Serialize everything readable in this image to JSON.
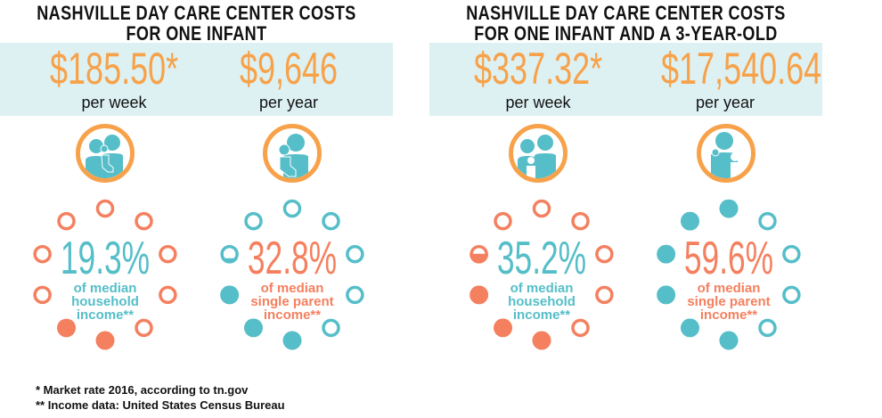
{
  "colors": {
    "teal": "#55bec8",
    "coral": "#f4805f",
    "orange": "#f7a24a",
    "band": "#ddf1f3"
  },
  "panels": [
    {
      "title": "NASHVILLE DAY CARE CENTER COSTS FOR ONE INFANT",
      "weekly": {
        "value": "$185.50*",
        "unit": "per week"
      },
      "yearly": {
        "value": "$9,646",
        "unit": "per year"
      },
      "icons": [
        "parent-holding-infant-icon",
        "parent-holding-infant-icon"
      ],
      "gauges": [
        {
          "percent": 19.3,
          "value_label": "19.3%",
          "sub": [
            "of median",
            "household",
            "income**"
          ],
          "text_color": "teal",
          "dot_color": "coral"
        },
        {
          "percent": 32.8,
          "value_label": "32.8%",
          "sub": [
            "of median",
            "single parent",
            "income**"
          ],
          "text_color": "coral",
          "dot_color": "teal"
        }
      ]
    },
    {
      "title": "NASHVILLE DAY CARE CENTER COSTS FOR ONE INFANT AND A 3-YEAR-OLD",
      "weekly": {
        "value": "$337.32*",
        "unit": "per week"
      },
      "yearly": {
        "value": "$17,540.64",
        "unit": "per year"
      },
      "icons": [
        "parents-with-infant-and-child-icon",
        "parent-with-infant-and-child-icon"
      ],
      "gauges": [
        {
          "percent": 35.2,
          "value_label": "35.2%",
          "sub": [
            "of median",
            "household",
            "income**"
          ],
          "text_color": "teal",
          "dot_color": "coral"
        },
        {
          "percent": 59.6,
          "value_label": "59.6%",
          "sub": [
            "of median",
            "single parent",
            "income**"
          ],
          "text_color": "coral",
          "dot_color": "teal"
        }
      ]
    }
  ],
  "footnotes": [
    "* Market rate 2016, according to tn.gov",
    "** Income data: United States Census Bureau"
  ]
}
